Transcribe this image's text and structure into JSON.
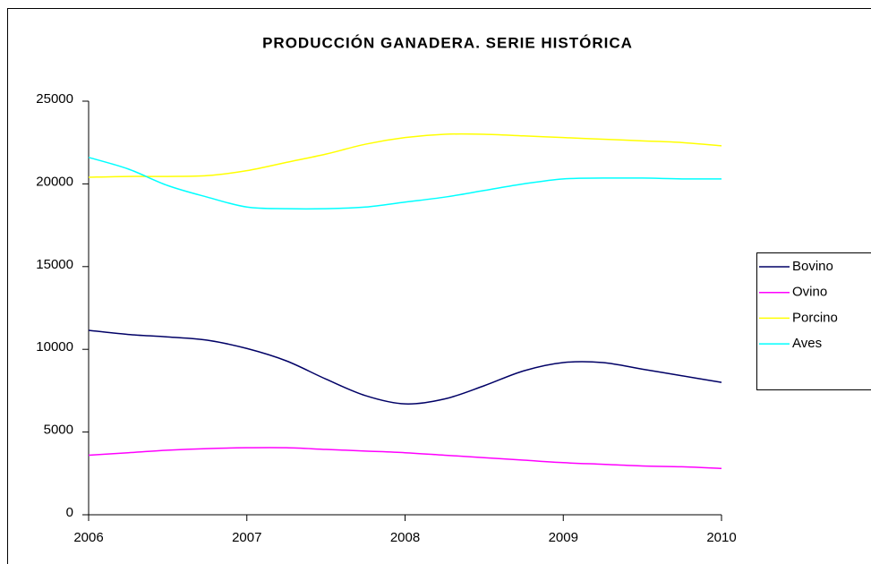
{
  "chart_data": {
    "type": "line",
    "title": "PRODUCCIÓN GANADERA. SERIE HISTÓRICA",
    "x": [
      2006,
      2006.25,
      2006.5,
      2006.75,
      2007,
      2007.25,
      2007.5,
      2007.75,
      2008,
      2008.25,
      2008.5,
      2008.75,
      2009,
      2009.25,
      2009.5,
      2009.75,
      2010
    ],
    "series": [
      {
        "name": "Bovino",
        "color": "#000066",
        "values": [
          11150,
          10900,
          10750,
          10550,
          10050,
          9300,
          8200,
          7200,
          6700,
          7000,
          7800,
          8700,
          9200,
          9200,
          8800,
          8400,
          8000
        ]
      },
      {
        "name": "Ovino",
        "color": "#ff00ff",
        "values": [
          3600,
          3750,
          3900,
          4000,
          4050,
          4050,
          3950,
          3850,
          3750,
          3600,
          3450,
          3300,
          3150,
          3050,
          2950,
          2900,
          2800
        ]
      },
      {
        "name": "Porcino",
        "color": "#ffff00",
        "values": [
          20400,
          20450,
          20450,
          20500,
          20800,
          21300,
          21800,
          22400,
          22800,
          23000,
          23000,
          22900,
          22800,
          22700,
          22600,
          22500,
          22300
        ]
      },
      {
        "name": "Aves",
        "color": "#00ffff",
        "values": [
          21600,
          20900,
          19900,
          19200,
          18600,
          18500,
          18500,
          18600,
          18900,
          19200,
          19600,
          20000,
          20300,
          20350,
          20350,
          20300,
          20300
        ]
      }
    ],
    "xlim": [
      2006,
      2010
    ],
    "xticks": [
      2006,
      2007,
      2008,
      2009,
      2010
    ],
    "ylim": [
      0,
      25000
    ],
    "yticks": [
      0,
      5000,
      10000,
      15000,
      20000,
      25000
    ],
    "grid": false,
    "legend": "right"
  }
}
